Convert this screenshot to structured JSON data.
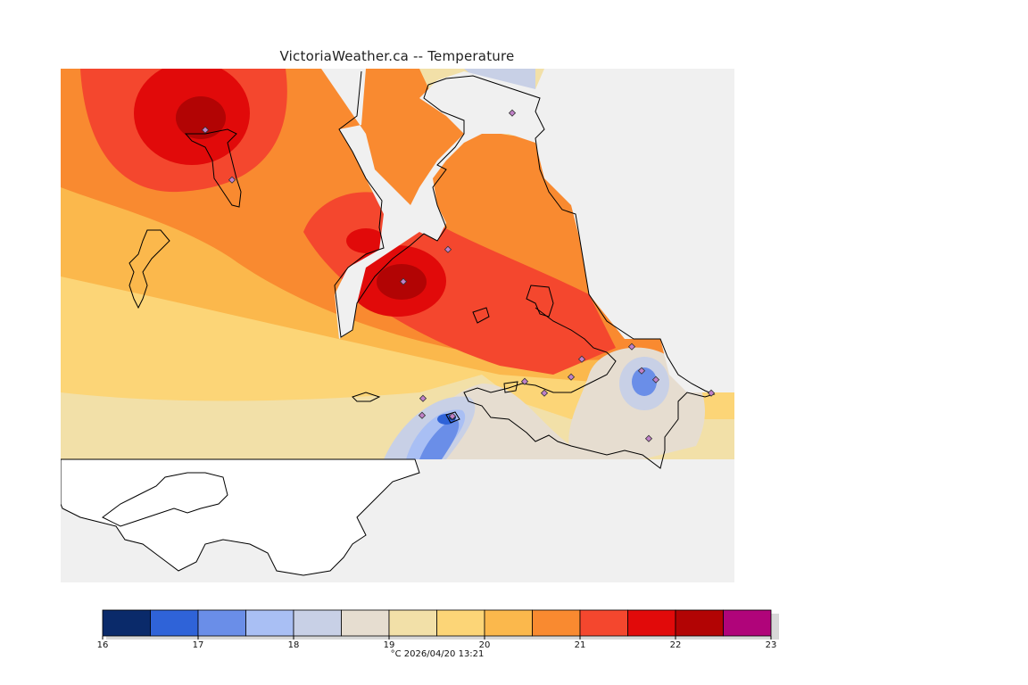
{
  "title": "VictoriaWeather.ca -- Temperature",
  "map": {
    "background_color": "#f0f0f0",
    "land_outline_color": "#000000",
    "station_marker_color": "#c080c8"
  },
  "legend": {
    "ticks": [
      "16",
      "17",
      "18",
      "19",
      "20",
      "21",
      "22",
      "23"
    ],
    "min": 16,
    "max": 23,
    "step": 0.5,
    "colors": [
      "#0a2a6a",
      "#2f63d8",
      "#6a8ee8",
      "#a9bff4",
      "#c8d0e6",
      "#e6ddd0",
      "#f2e0a8",
      "#fcd577",
      "#fbb84c",
      "#f98a30",
      "#f4472e",
      "#e10a0a",
      "#b20404",
      "#b0047a"
    ]
  },
  "footer": {
    "unit": "°C",
    "timestamp": "2026/04/20 13:21"
  }
}
